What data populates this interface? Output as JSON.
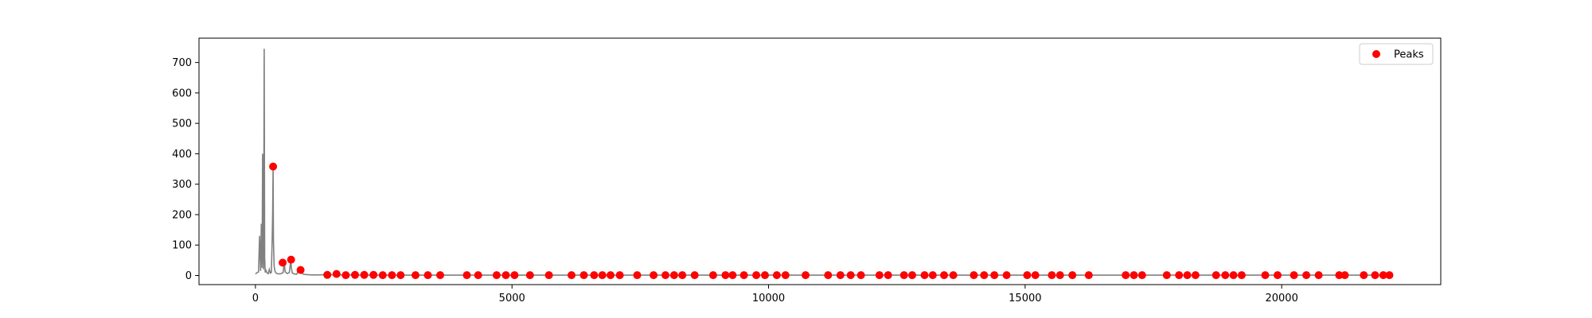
{
  "chart_data": {
    "type": "line",
    "xlim": [
      -1100,
      23100
    ],
    "ylim": [
      -30,
      780
    ],
    "grid": false,
    "legend_placement": "top-right",
    "x_ticks": [
      0,
      5000,
      10000,
      15000,
      20000
    ],
    "y_ticks": [
      0,
      100,
      200,
      300,
      400,
      500,
      600,
      700
    ],
    "x_tick_labels": [
      "0",
      "5000",
      "10000",
      "15000",
      "20000"
    ],
    "y_tick_labels": [
      "0",
      "100",
      "200",
      "300",
      "400",
      "500",
      "600",
      "700"
    ],
    "colors": {
      "signal": "#808080",
      "peaks": "#ff0000"
    },
    "series": [
      {
        "kind": "line",
        "x": [
          0,
          20,
          40,
          60,
          80,
          100,
          115,
          130,
          140,
          150,
          160,
          170,
          180,
          190,
          200,
          215,
          230,
          250,
          270,
          290,
          310,
          325,
          335,
          345,
          350,
          355,
          365,
          380,
          400,
          450,
          500,
          540,
          560,
          580,
          620,
          660,
          690,
          700,
          720,
          760,
          800,
          860,
          900,
          940,
          1000,
          1100,
          1200,
          1400,
          1600,
          1800,
          2000,
          3000,
          5000,
          7500,
          10000,
          12500,
          15000,
          17500,
          20000,
          22000
        ],
        "y": [
          5,
          8,
          10,
          12,
          130,
          15,
          170,
          25,
          400,
          100,
          20,
          745,
          60,
          10,
          20,
          12,
          8,
          6,
          20,
          8,
          10,
          115,
          200,
          355,
          120,
          90,
          30,
          15,
          8,
          5,
          6,
          10,
          42,
          12,
          6,
          10,
          52,
          25,
          8,
          5,
          4,
          20,
          8,
          4,
          3,
          2,
          2,
          3,
          2,
          2,
          1,
          1,
          1,
          1,
          1,
          1,
          1,
          1,
          1,
          1
        ]
      },
      {
        "name": "Peaks",
        "kind": "scatter",
        "x": [
          345,
          530,
          695,
          880,
          1400,
          1580,
          1760,
          1940,
          2120,
          2300,
          2480,
          2660,
          2830,
          3120,
          3360,
          3600,
          4120,
          4340,
          4700,
          4880,
          5050,
          5350,
          5720,
          6160,
          6400,
          6600,
          6760,
          6920,
          7100,
          7440,
          7760,
          7990,
          8160,
          8320,
          8560,
          8920,
          9160,
          9300,
          9520,
          9760,
          9930,
          10160,
          10330,
          10720,
          11160,
          11400,
          11600,
          11800,
          12160,
          12330,
          12640,
          12800,
          13040,
          13200,
          13420,
          13600,
          14000,
          14200,
          14400,
          14640,
          15040,
          15200,
          15520,
          15680,
          15920,
          16240,
          16960,
          17120,
          17280,
          17760,
          18000,
          18160,
          18320,
          18720,
          18900,
          19060,
          19220,
          19680,
          19920,
          20240,
          20480,
          20720,
          21120,
          21230,
          21600,
          21820,
          21980,
          22100
        ],
        "y": [
          358,
          42,
          52,
          18,
          2,
          5,
          1,
          2,
          2,
          2,
          1,
          1,
          1,
          1,
          1,
          1,
          1,
          1,
          1,
          1,
          1,
          1,
          1,
          1,
          1,
          1,
          1,
          1,
          1,
          1,
          1,
          1,
          1,
          1,
          1,
          1,
          1,
          1,
          1,
          1,
          1,
          1,
          1,
          1,
          1,
          1,
          1,
          1,
          1,
          1,
          1,
          1,
          1,
          1,
          1,
          1,
          1,
          1,
          1,
          1,
          1,
          1,
          1,
          1,
          1,
          1,
          1,
          1,
          1,
          1,
          1,
          1,
          1,
          1,
          1,
          1,
          1,
          1,
          1,
          1,
          1,
          1,
          1,
          1,
          1,
          1,
          1,
          1
        ]
      }
    ],
    "legend": [
      {
        "label": "Peaks"
      }
    ]
  }
}
